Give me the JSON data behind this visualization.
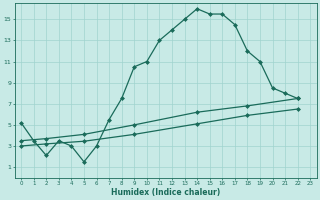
{
  "title": "",
  "xlabel": "Humidex (Indice chaleur)",
  "ylabel": "",
  "bg_color": "#c8eae6",
  "grid_color": "#a0d4ce",
  "line_color": "#1a6b5a",
  "xlim": [
    -0.5,
    23.5
  ],
  "ylim": [
    0,
    16.5
  ],
  "xticks": [
    0,
    1,
    2,
    3,
    4,
    5,
    6,
    7,
    8,
    9,
    10,
    11,
    12,
    13,
    14,
    15,
    16,
    17,
    18,
    19,
    20,
    21,
    22,
    23
  ],
  "yticks": [
    1,
    3,
    5,
    7,
    9,
    11,
    13,
    15
  ],
  "line1_x": [
    0,
    1,
    2,
    3,
    4,
    5,
    6,
    7,
    8,
    9,
    10,
    11,
    12,
    13,
    14,
    15,
    16,
    17,
    18,
    19,
    20,
    21,
    22
  ],
  "line1_y": [
    5.2,
    3.5,
    2.1,
    3.5,
    3.0,
    1.5,
    3.0,
    5.5,
    7.5,
    10.5,
    11.0,
    13.0,
    14.0,
    15.0,
    16.0,
    15.5,
    15.5,
    14.5,
    12.0,
    11.0,
    8.5,
    8.0,
    7.5
  ],
  "line2_x": [
    0,
    2,
    5,
    9,
    14,
    18,
    22
  ],
  "line2_y": [
    3.5,
    3.7,
    4.1,
    5.0,
    6.2,
    6.8,
    7.5
  ],
  "line3_x": [
    0,
    2,
    5,
    9,
    14,
    18,
    22
  ],
  "line3_y": [
    3.0,
    3.2,
    3.45,
    4.1,
    5.1,
    5.9,
    6.5
  ]
}
